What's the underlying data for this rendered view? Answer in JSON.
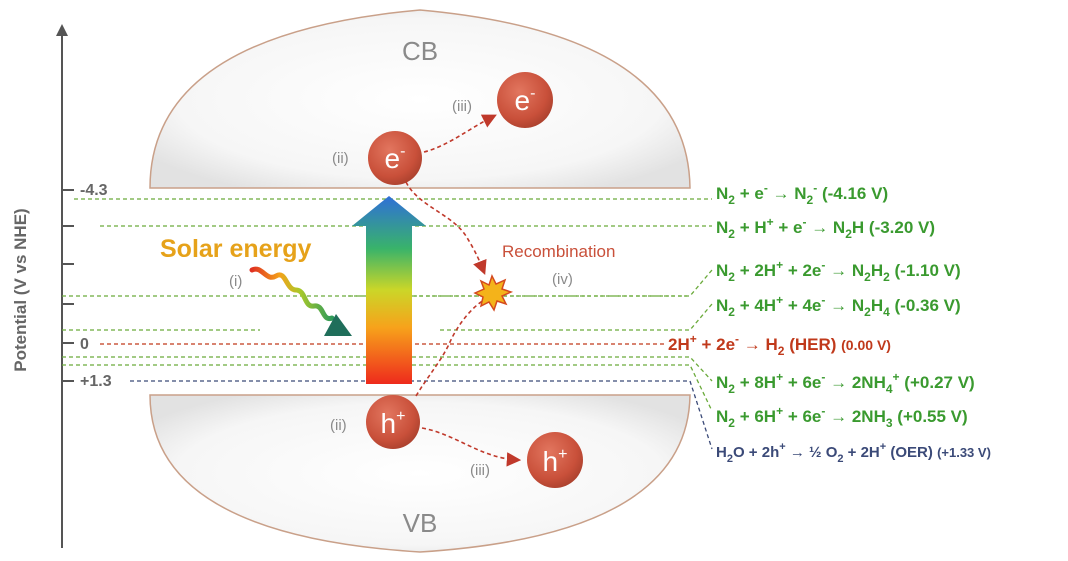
{
  "axis": {
    "ylabel": "Potential (V vs NHE)",
    "ticks": [
      "-4.3",
      "0",
      "+1.3"
    ]
  },
  "bands": {
    "cb": "CB",
    "vb": "VB"
  },
  "carriers": {
    "electron": "e",
    "electron_sup": "-",
    "hole": "h",
    "hole_sup": "+"
  },
  "labels": {
    "solar": "Solar energy",
    "recombination": "Recombination",
    "step_i": "(i)",
    "step_ii": "(ii)",
    "step_iii": "(iii)",
    "step_iv": "(iv)"
  },
  "reactions": [
    {
      "name": "n2-minus",
      "color": "#3a9a2f",
      "value": "(-4.16 V)"
    },
    {
      "name": "n2h",
      "color": "#3a9a2f",
      "value": "(-3.20 V)"
    },
    {
      "name": "n2h2",
      "color": "#3a9a2f",
      "value": "(-1.10 V)"
    },
    {
      "name": "n2h4",
      "color": "#3a9a2f",
      "value": "(-0.36 V)"
    },
    {
      "name": "her",
      "color": "#c0391b",
      "value": "(0.00 V)"
    },
    {
      "name": "nh4",
      "color": "#3a9a2f",
      "value": "(+0.27 V)"
    },
    {
      "name": "nh3",
      "color": "#3a9a2f",
      "value": "(+0.55 V)"
    },
    {
      "name": "oer",
      "color": "#3b4a78",
      "value": "(+1.33 V)"
    }
  ],
  "colors": {
    "carrier": "#c9503a",
    "solar_text": "#e6a21a",
    "recombination_text": "#c9503a",
    "dashed_arrow": "#c0392b",
    "guide_green": "#6aaa3a",
    "guide_red": "#c0391b",
    "guide_navy": "#3b4a78"
  }
}
